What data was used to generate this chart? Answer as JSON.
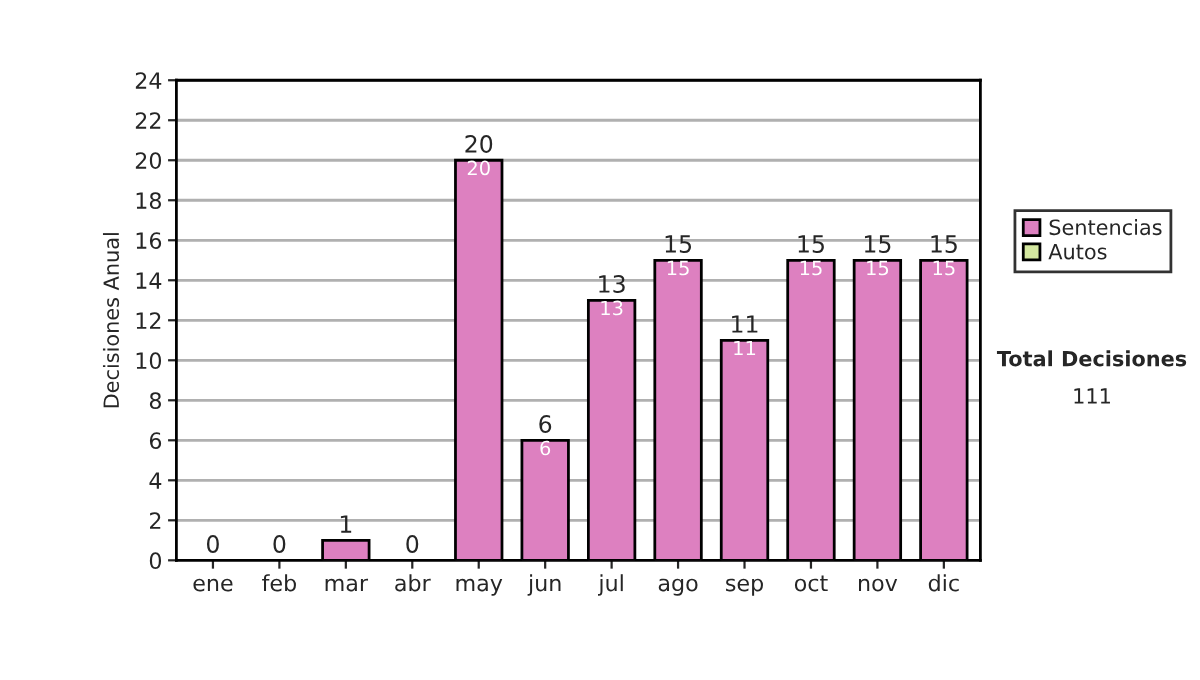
{
  "chart_data": {
    "type": "bar",
    "stacked": true,
    "ylabel": "Decisiones Anual",
    "categories": [
      "ene",
      "feb",
      "mar",
      "abr",
      "may",
      "jun",
      "jul",
      "ago",
      "sep",
      "oct",
      "nov",
      "dic"
    ],
    "series": [
      {
        "name": "Sentencias",
        "color": "#dd80c0",
        "values": [
          0,
          0,
          1,
          0,
          20,
          6,
          13,
          15,
          11,
          15,
          15,
          15
        ],
        "value_labels": [
          null,
          null,
          null,
          null,
          "20",
          "6",
          "13",
          "15",
          "11",
          "15",
          "15",
          "15"
        ]
      },
      {
        "name": "Autos",
        "color": "#d4e8a0",
        "values": [
          0,
          0,
          0,
          0,
          0,
          0,
          0,
          0,
          0,
          0,
          0,
          0
        ]
      }
    ],
    "totals": [
      "0",
      "0",
      "1",
      "0",
      "20",
      "6",
      "13",
      "15",
      "11",
      "15",
      "15",
      "15"
    ],
    "ylim": [
      0,
      24
    ],
    "yticks": [
      0,
      2,
      4,
      6,
      8,
      10,
      12,
      14,
      16,
      18,
      20,
      22,
      24
    ],
    "grid": "y",
    "legend": "right",
    "annotations": [
      "Total Decisiones",
      "111"
    ]
  }
}
